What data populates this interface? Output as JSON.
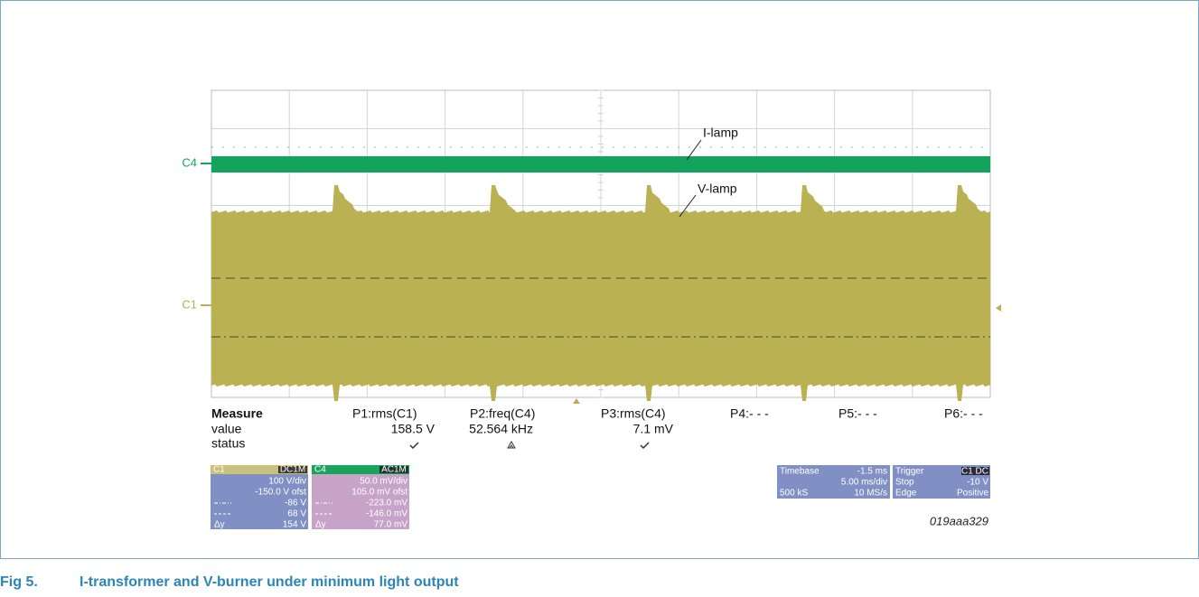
{
  "figure": {
    "trace_labels": {
      "c4": "C4",
      "c1": "C1"
    },
    "annotations": [
      "I-lamp",
      "V-lamp"
    ],
    "measure": {
      "title": "Measure",
      "row_labels": [
        "value",
        "status"
      ],
      "columns": [
        {
          "name": "P1:rms(C1)",
          "value": "158.5 V"
        },
        {
          "name": "P2:freq(C4)",
          "value": "52.564 kHz"
        },
        {
          "name": "P3:rms(C4)",
          "value": "7.1 mV"
        },
        {
          "name": "P4:- - -"
        },
        {
          "name": "P5:- - -"
        },
        {
          "name": "P6:- - -"
        }
      ]
    },
    "c1_box": {
      "title": "C1",
      "badge": "DC1M",
      "delta": "Δy",
      "rows": [
        "100 V/div",
        "-150.0 V ofst",
        "-86 V",
        "68 V",
        "154 V"
      ]
    },
    "c4_box": {
      "title": "C4",
      "badge": "AC1M",
      "delta": "Δy",
      "rows": [
        "50.0 mV/div",
        "105.0 mV ofst",
        "-223.0 mV",
        "-146.0 mV",
        "77.0 mV"
      ]
    },
    "timebase": {
      "title": "Timebase",
      "offset": "-1.5 ms",
      "scale": "5.00 ms/div",
      "samples": "500 kS",
      "rate": "10 MS/s"
    },
    "trigger": {
      "title": "Trigger",
      "badge": "C1 DC",
      "mode": "Stop",
      "level": "-10 V",
      "type": "Edge",
      "slope": "Positive"
    },
    "code": "019aaa329",
    "caption": {
      "number": "Fig 5.",
      "text": "I-transformer and V-burner under minimum light output"
    }
  }
}
